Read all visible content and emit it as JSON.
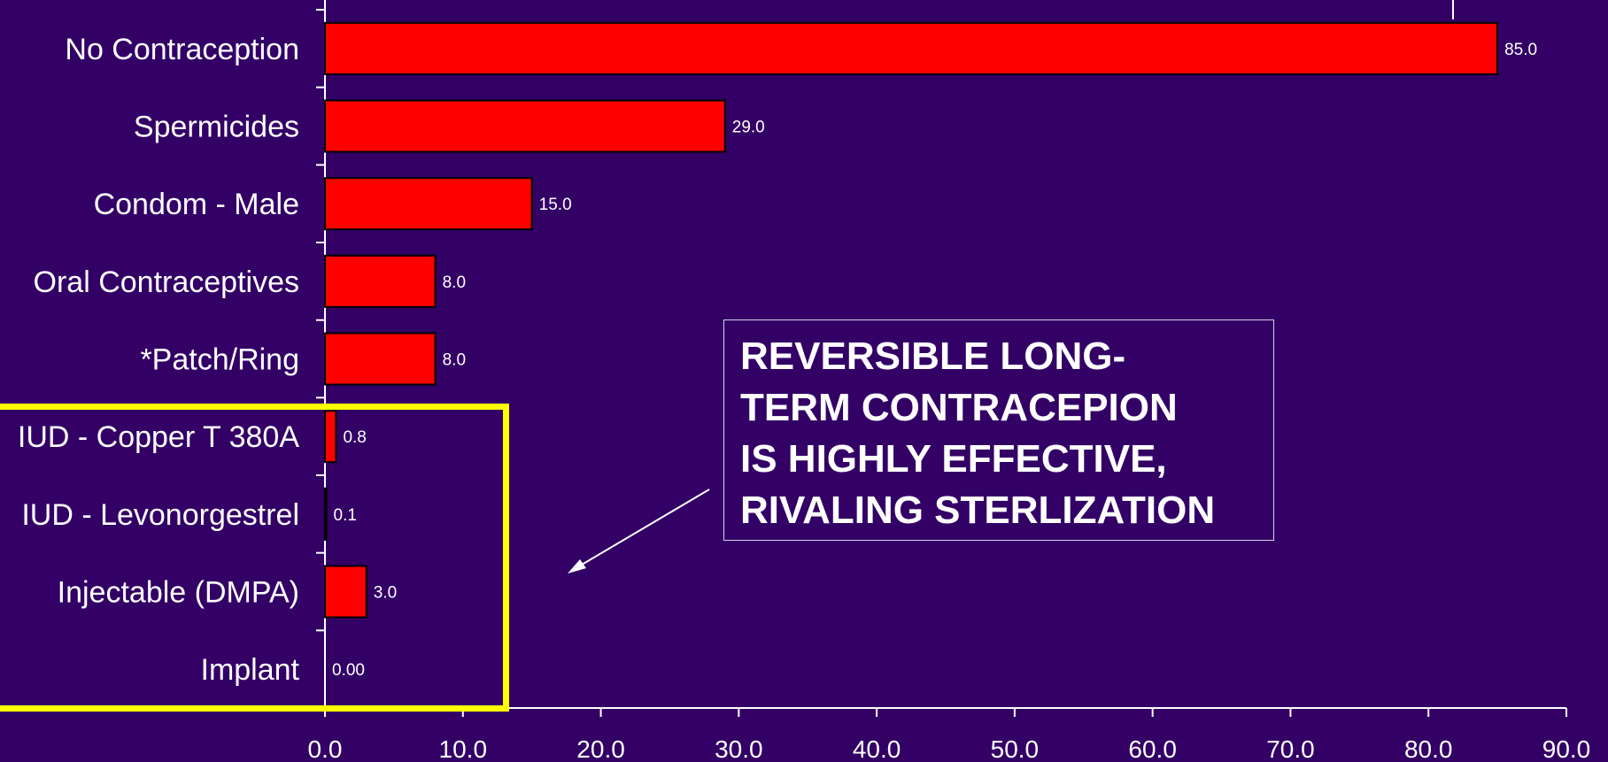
{
  "chart_data": {
    "type": "bar",
    "orientation": "horizontal",
    "categories": [
      "No Contraception",
      "Spermicides",
      "Condom - Male",
      "Oral Contraceptives",
      "*Patch/Ring",
      "IUD - Copper T 380A",
      "IUD - Levonorgestrel",
      "Injectable (DMPA)",
      "Implant"
    ],
    "values": [
      85.0,
      29.0,
      15.0,
      8.0,
      8.0,
      0.8,
      0.1,
      3.0,
      0.0
    ],
    "value_labels": [
      "85.0",
      "29.0",
      "15.0",
      "8.0",
      "8.0",
      "0.8",
      "0.1",
      "3.0",
      "0.00"
    ],
    "xlim": [
      0,
      90
    ],
    "xticks": [
      "0.0",
      "10.0",
      "20.0",
      "30.0",
      "40.0",
      "50.0",
      "60.0",
      "70.0",
      "80.0",
      "90.0"
    ],
    "bar_color": "#ff0000",
    "background_color": "#330066",
    "grid": false,
    "title": "",
    "xlabel": "",
    "ylabel": ""
  },
  "callout": {
    "lines": [
      "REVERSIBLE LONG-",
      "TERM CONTRACEPION",
      "IS HIGHLY EFFECTIVE,",
      "RIVALING STERLIZATION"
    ]
  },
  "highlight_color": "#ffff00"
}
